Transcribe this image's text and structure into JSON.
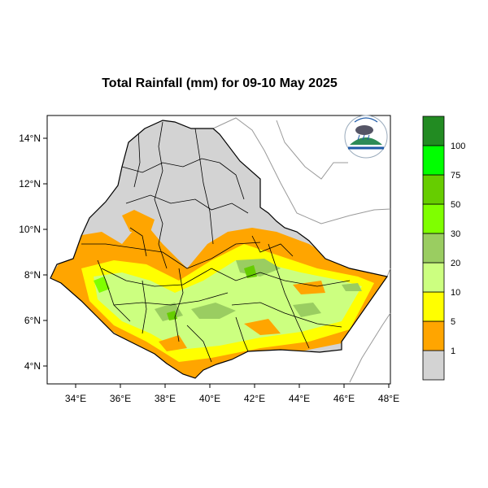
{
  "title": "Total Rainfall (mm) for 09-10 May 2025",
  "map": {
    "lon_ticks": [
      "34°E",
      "36°E",
      "38°E",
      "40°E",
      "42°E",
      "44°E",
      "46°E",
      "48°E"
    ],
    "lat_ticks": [
      "14°N",
      "12°N",
      "10°N",
      "8°N",
      "6°N",
      "4°N"
    ]
  },
  "legend": {
    "labels": [
      "1",
      "5",
      "10",
      "20",
      "30",
      "50",
      "75",
      "100"
    ],
    "colors": [
      "#d3d3d3",
      "#ffa500",
      "#ffff00",
      "#ccff80",
      "#9acd61",
      "#7fff00",
      "#66cd00",
      "#00ff00",
      "#228b22"
    ]
  },
  "logo": {
    "icon": "meteorology-agency-logo"
  }
}
